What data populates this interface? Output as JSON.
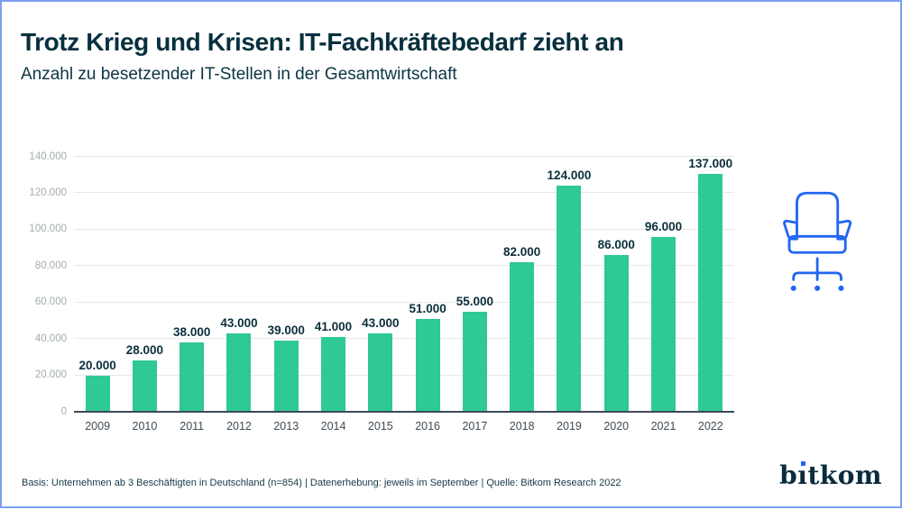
{
  "header": {
    "title": "Trotz Krieg und Krisen: IT-Fachkräftebedarf zieht an",
    "subtitle": "Anzahl zu besetzender IT-Stellen in der Gesamtwirtschaft"
  },
  "chart_data": {
    "type": "bar",
    "title": "Trotz Krieg und Krisen: IT-Fachkräftebedarf zieht an",
    "subtitle": "Anzahl zu besetzender IT-Stellen in der Gesamtwirtschaft",
    "categories": [
      "2009",
      "2010",
      "2011",
      "2012",
      "2013",
      "2014",
      "2015",
      "2016",
      "2017",
      "2018",
      "2019",
      "2020",
      "2021",
      "2022"
    ],
    "values": [
      20000,
      28000,
      38000,
      43000,
      39000,
      41000,
      43000,
      51000,
      55000,
      82000,
      124000,
      86000,
      96000,
      137000
    ],
    "value_labels": [
      "20.000",
      "28.000",
      "38.000",
      "43.000",
      "39.000",
      "41.000",
      "43.000",
      "51.000",
      "55.000",
      "82.000",
      "124.000",
      "86.000",
      "96.000",
      "137.000"
    ],
    "xlabel": "",
    "ylabel": "",
    "ylim": [
      0,
      140000
    ],
    "yticks": [
      0,
      20000,
      40000,
      60000,
      80000,
      100000,
      120000,
      140000
    ],
    "ytick_labels": [
      "0",
      "20.000",
      "40.000",
      "60.000",
      "80.000",
      "100.000",
      "120.000",
      "140.000"
    ],
    "grid": "horizontal",
    "legend": "none",
    "bar_color": "#2fc993",
    "label_color": "#0b2f3c"
  },
  "icons": {
    "office_chair": "office-chair-outline",
    "chair_color": "#2166f2"
  },
  "footer": {
    "note": "Basis: Unternehmen ab 3 Beschäftigten in Deutschland (n=854) | Datenerhebung: jeweils im September | Quelle: Bitkom Research 2022"
  },
  "logo": {
    "text": "bitkom",
    "part1": "b",
    "part2": "ı",
    "part3": "tkom",
    "dot_color": "#2166f2"
  },
  "colors": {
    "frame_border": "#7d9ff3",
    "title_text": "#07303e",
    "axis_line": "#3d4a53",
    "gridline": "#e5e8e9",
    "ytick_text": "#a3abaf",
    "xtick_text": "#3f4b54"
  }
}
